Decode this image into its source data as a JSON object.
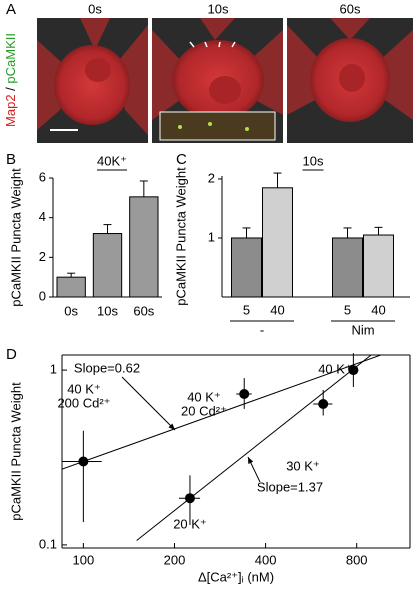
{
  "panel_a": {
    "label": "A",
    "frames": [
      "0s",
      "10s",
      "60s"
    ],
    "ylabel_parts": [
      "Map2",
      " / ",
      "pCaMKII"
    ]
  },
  "chart_data": [
    {
      "type": "bar",
      "label": "B",
      "title": "40K⁺",
      "ylabel": "pCaMKII Puncta Weight",
      "categories": [
        "0s",
        "10s",
        "60s"
      ],
      "values": [
        1.0,
        3.2,
        5.05
      ],
      "errors": [
        0.2,
        0.45,
        0.8
      ],
      "color": "#9a9a9a",
      "ylim": [
        0,
        6
      ],
      "yticks": [
        0,
        2,
        4,
        6
      ]
    },
    {
      "type": "grouped_bar",
      "label": "C",
      "title": "10s",
      "ylabel": "pCaMKII Puncta Weight",
      "groups": [
        "-",
        "Nim"
      ],
      "series": [
        {
          "name": "5",
          "color": "#8c8c8c",
          "values": [
            1.0,
            1.0
          ],
          "errors": [
            0.17,
            0.17
          ]
        },
        {
          "name": "40",
          "color": "#d0d0d0",
          "values": [
            1.85,
            1.05
          ],
          "errors": [
            0.25,
            0.13
          ]
        }
      ],
      "ylim": [
        0,
        2.05
      ],
      "yticks": [
        1,
        2
      ]
    },
    {
      "type": "scatter",
      "label": "D",
      "xlabel": "Δ[Ca²⁺]ᵢ (nM)",
      "ylabel": "pCaMKII Puncta Weight",
      "log_x": true,
      "log_y": true,
      "x": [
        100,
        225,
        340,
        620,
        780
      ],
      "y": [
        0.3,
        0.185,
        0.73,
        0.64,
        1.0
      ],
      "x_err": [
        15,
        18,
        20,
        45,
        30
      ],
      "y_lower": [
        0.135,
        0.13,
        0.6,
        0.55,
        0.8
      ],
      "y_upper": [
        0.45,
        0.25,
        0.9,
        0.77,
        1.25
      ],
      "point_labels": [
        [
          "40 K⁺",
          "200 Cd²⁺"
        ],
        [
          "20 K⁺"
        ],
        [
          "40 K⁺",
          "20 Cd²⁺"
        ],
        [
          "30 K⁺"
        ],
        [
          "40 K⁺"
        ]
      ],
      "fits": [
        {
          "label": "Slope=0.62",
          "x": [
            85,
            1200
          ],
          "y": [
            0.271,
            1.4
          ]
        },
        {
          "label": "Slope=1.37",
          "x": [
            150,
            1200
          ],
          "y": [
            0.106,
            1.83
          ]
        }
      ],
      "xlim": [
        85,
        1200
      ],
      "ylim": [
        0.096,
        1.22
      ],
      "xticks": [
        100,
        200,
        400,
        800
      ],
      "yticks": [
        0.1,
        1
      ]
    }
  ]
}
